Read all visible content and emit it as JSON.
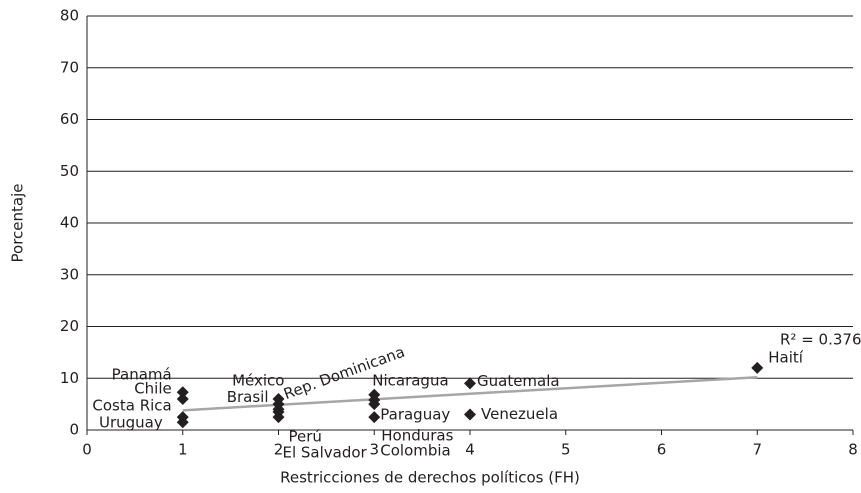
{
  "chart_data": {
    "type": "scatter",
    "x_label": "Restricciones de derechos políticos (FH)",
    "y_label": "Porcentaje",
    "annotation": "R² = 0.3763",
    "xlim": [
      0,
      8
    ],
    "xticks": [
      0,
      1,
      2,
      3,
      4,
      5,
      6,
      7,
      8
    ],
    "ylim": [
      0,
      80
    ],
    "yticks": [
      0,
      10,
      20,
      30,
      40,
      50,
      60,
      70,
      80
    ],
    "grid": true,
    "color": "#231f20",
    "trend_color": "#a6a6a6",
    "trendline": {
      "x": [
        1,
        7
      ],
      "y": [
        3.8,
        10.2
      ]
    },
    "labels": [
      "Panamá",
      "Chile",
      "Costa Rica",
      "Uruguay",
      "México",
      "Rep. Dominicana",
      "Brasil",
      "Perú",
      "El Salvador",
      "Nicaragua",
      "Paraguay",
      "Honduras",
      "Colombia",
      "Guatemala",
      "Venezuela",
      "Haití"
    ],
    "x": [
      1,
      1,
      1,
      1,
      2,
      2,
      2,
      2,
      2,
      3,
      3,
      3,
      3,
      4,
      4,
      7
    ],
    "values": [
      7.3,
      6,
      2.5,
      1.5,
      6,
      5,
      4,
      3.5,
      2.5,
      6.8,
      5.8,
      5,
      2.5,
      9,
      3,
      12
    ]
  }
}
